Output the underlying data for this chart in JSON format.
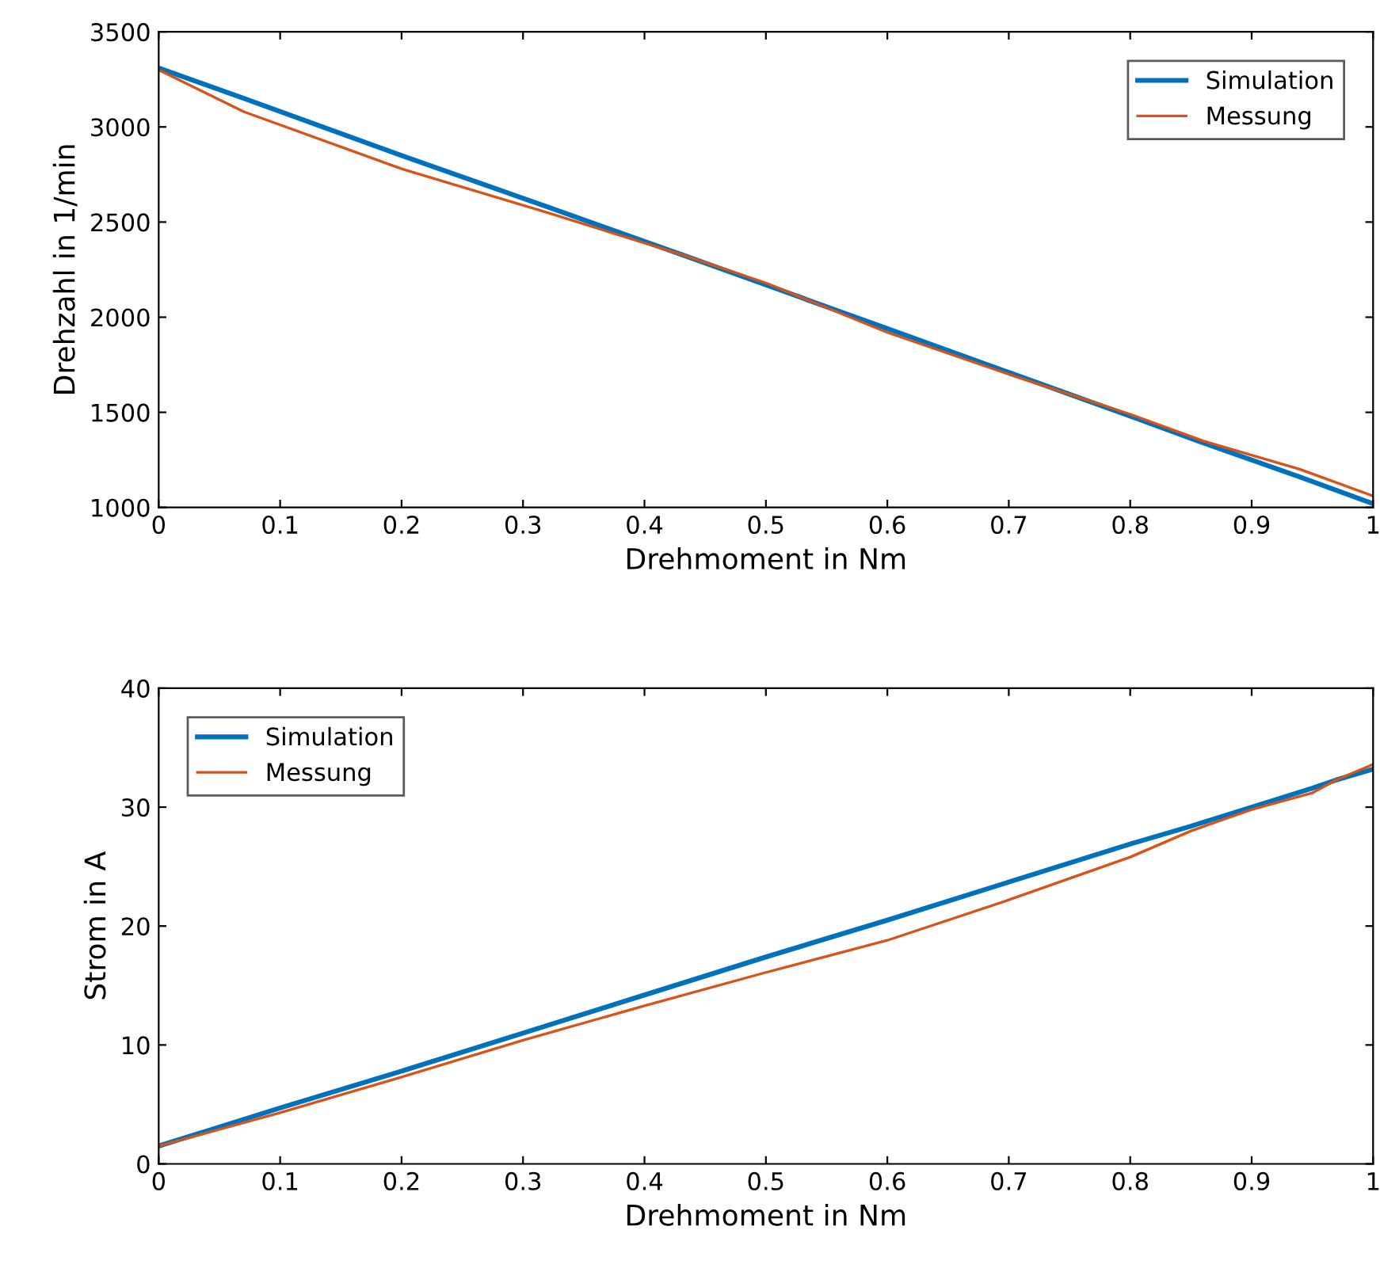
{
  "chart_data": [
    {
      "type": "line",
      "xlabel": "Drehmoment in Nm",
      "ylabel": "Drehzahl in 1/min",
      "x": [
        0,
        0.07,
        0.2,
        0.32,
        0.43,
        0.5,
        0.6,
        0.7,
        0.8,
        0.86,
        0.94,
        1
      ],
      "xlim": [
        0,
        1
      ],
      "xticks": [
        0,
        0.1,
        0.2,
        0.3,
        0.4,
        0.5,
        0.6,
        0.7,
        0.8,
        0.9,
        1
      ],
      "ylim": [
        1000,
        3500
      ],
      "yticks": [
        1000,
        1500,
        2000,
        2500,
        3000,
        3500
      ],
      "legend": "top right",
      "grid": false,
      "series": [
        {
          "name": "Simulation",
          "color": "#0072bd",
          "values": [
            3310,
            3150,
            2850,
            2580,
            2330,
            2170,
            1940,
            1710,
            1480,
            1340,
            1160,
            1020
          ]
        },
        {
          "name": "Messung",
          "color": "#d95319",
          "values": [
            3300,
            3080,
            2780,
            2550,
            2330,
            2180,
            1920,
            1700,
            1490,
            1350,
            1200,
            1060
          ]
        }
      ]
    },
    {
      "type": "line",
      "xlabel": "Drehmoment in Nm",
      "ylabel": "Strom in A",
      "x": [
        0,
        0.1,
        0.2,
        0.3,
        0.4,
        0.5,
        0.6,
        0.7,
        0.8,
        0.85,
        0.9,
        0.95,
        0.97,
        1
      ],
      "xlim": [
        0,
        1
      ],
      "xticks": [
        0,
        0.1,
        0.2,
        0.3,
        0.4,
        0.5,
        0.6,
        0.7,
        0.8,
        0.9,
        1
      ],
      "ylim": [
        0,
        40
      ],
      "yticks": [
        0,
        10,
        20,
        30,
        40
      ],
      "legend": "top left",
      "grid": false,
      "series": [
        {
          "name": "Simulation",
          "color": "#0072bd",
          "values": [
            1.5,
            4.7,
            7.8,
            11.0,
            14.2,
            17.4,
            20.5,
            23.7,
            26.9,
            28.4,
            30.0,
            31.6,
            32.3,
            33.2
          ]
        },
        {
          "name": "Messung",
          "color": "#d95319",
          "values": [
            1.5,
            4.3,
            7.3,
            10.4,
            13.3,
            16.1,
            18.8,
            22.2,
            25.8,
            28.0,
            29.8,
            31.2,
            32.3,
            33.6
          ]
        }
      ]
    }
  ]
}
